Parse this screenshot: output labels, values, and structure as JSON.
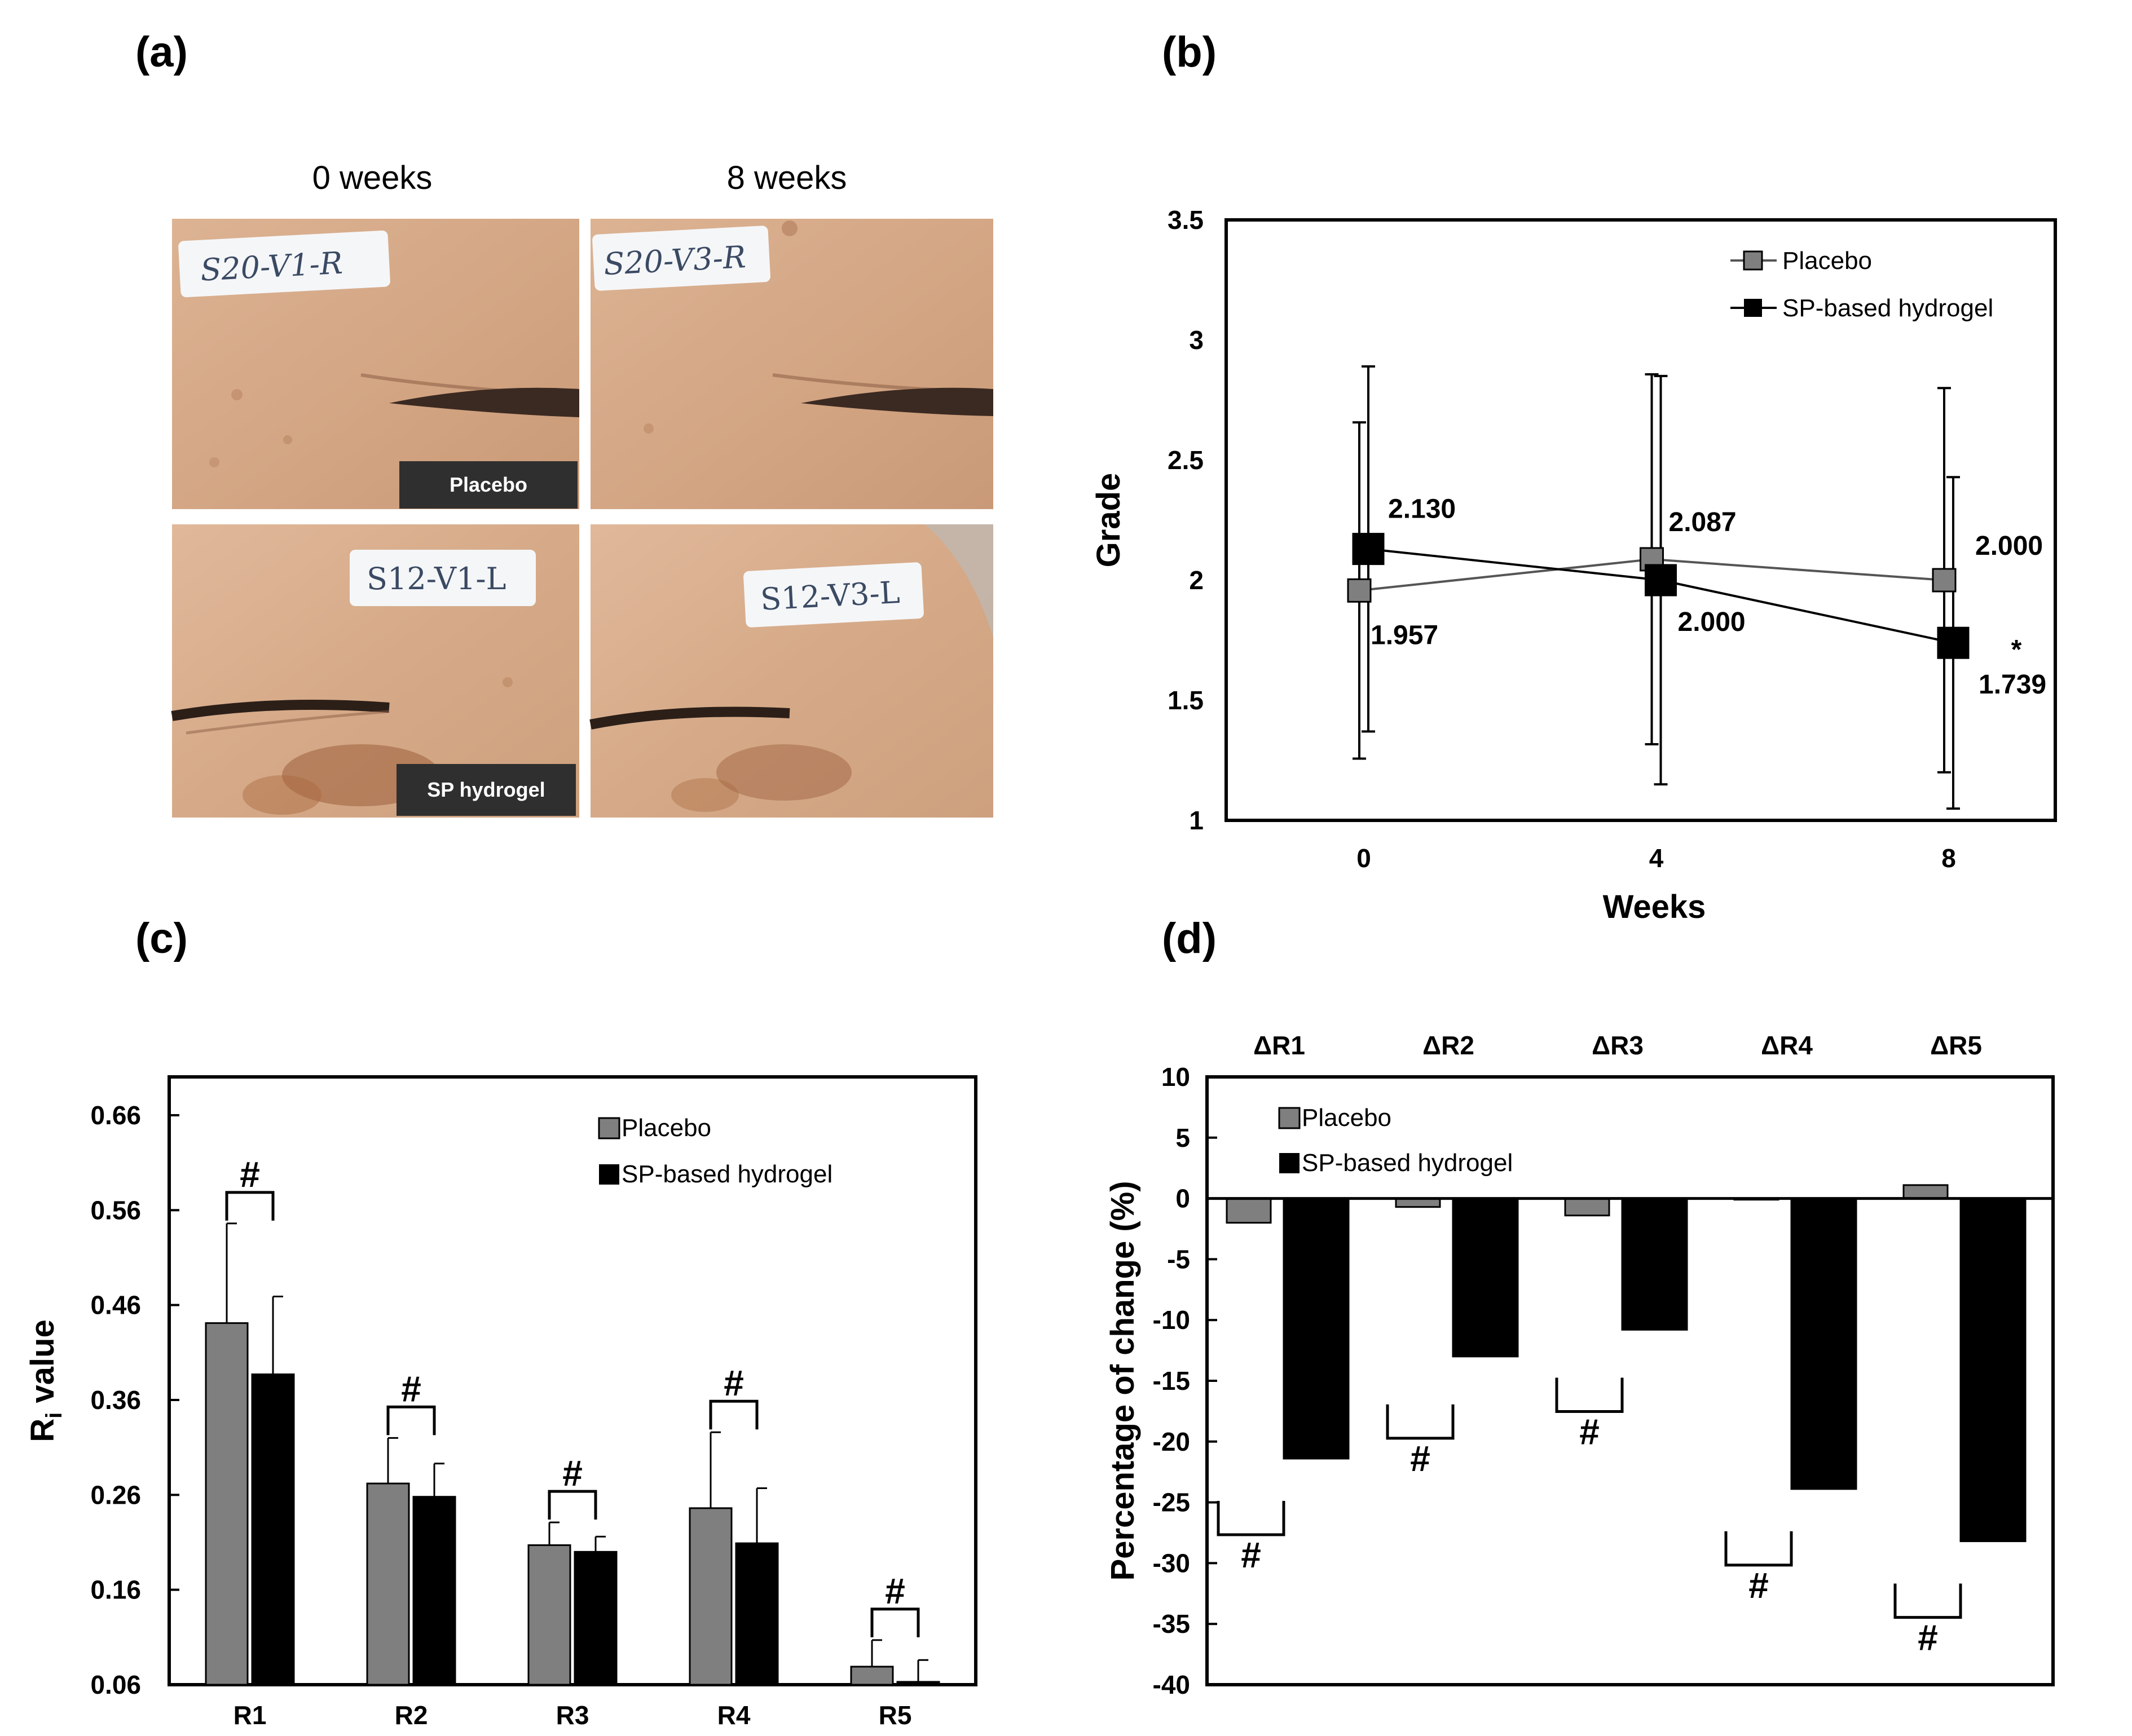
{
  "panels": {
    "a": "(a)",
    "b": "(b)",
    "c": "(c)",
    "d": "(d)"
  },
  "photos": {
    "col_0": "0 weeks",
    "col_8": "8 weeks",
    "tags": [
      "S20-V1-R",
      "S20-V3-R",
      "S12-V1-L",
      "S12-V3-L"
    ],
    "badge_placebo": "Placebo",
    "badge_sp": "SP hydrogel"
  },
  "colors": {
    "placebo": "#7f7f7f",
    "sp": "#000000",
    "skin": "#d8ab88"
  },
  "chart_data": [
    {
      "id": "b",
      "type": "line",
      "xlabel": "Weeks",
      "ylabel": "Grade",
      "x": [
        0,
        4,
        8
      ],
      "x_ticks": [
        "0",
        "4",
        "8"
      ],
      "ylim": [
        1,
        3.5
      ],
      "y_ticks": [
        "1",
        "1.5",
        "2",
        "2.5",
        "3",
        "3.5"
      ],
      "legend": [
        "Placebo",
        "SP-based hydrogel"
      ],
      "series": [
        {
          "name": "Placebo",
          "values": [
            1.957,
            2.087,
            2.0
          ],
          "errors": [
            0.7,
            0.77,
            0.8
          ],
          "labels": [
            "1.957",
            "2.087",
            "2.000"
          ]
        },
        {
          "name": "SP-based hydrogel",
          "values": [
            2.13,
            2.0,
            1.739
          ],
          "errors": [
            0.76,
            0.85,
            0.69
          ],
          "labels": [
            "2.130",
            "2.000",
            "1.739"
          ]
        }
      ],
      "annotations": [
        "*"
      ]
    },
    {
      "id": "c",
      "type": "bar",
      "ylabel": "R",
      "ylabel_sub": "i",
      "ylabel_suffix": " value",
      "categories": [
        "R1",
        "R2",
        "R3",
        "R4",
        "R5"
      ],
      "ylim": [
        0.06,
        0.66
      ],
      "y_ticks": [
        "0.06",
        "0.16",
        "0.26",
        "0.36",
        "0.46",
        "0.56",
        "0.66"
      ],
      "legend": [
        "Placebo",
        "SP-based hydrogel"
      ],
      "series": [
        {
          "name": "Placebo",
          "values": [
            0.441,
            0.272,
            0.207,
            0.246,
            0.079
          ],
          "errors": [
            0.105,
            0.048,
            0.024,
            0.08,
            0.028
          ]
        },
        {
          "name": "SP-based hydrogel",
          "values": [
            0.387,
            0.258,
            0.2,
            0.209,
            0.063
          ],
          "errors": [
            0.082,
            0.035,
            0.016,
            0.058,
            0.023
          ]
        }
      ],
      "significance": [
        "#",
        "#",
        "#",
        "#",
        "#"
      ]
    },
    {
      "id": "d",
      "type": "bar",
      "ylabel": "Percentage of change (%)",
      "categories": [
        "ΔR1",
        "ΔR2",
        "ΔR3",
        "ΔR4",
        "ΔR5"
      ],
      "ylim": [
        -40,
        10
      ],
      "y_ticks": [
        "-40",
        "-35",
        "-30",
        "-25",
        "-20",
        "-15",
        "-10",
        "-5",
        "0",
        "5",
        "10"
      ],
      "legend": [
        "Placebo",
        "SP-based hydrogel"
      ],
      "series": [
        {
          "name": "Placebo",
          "values": [
            -2.0,
            -0.7,
            -1.4,
            -0.1,
            1.1
          ]
        },
        {
          "name": "SP-based hydrogel",
          "values": [
            -21.4,
            -13.0,
            -10.8,
            -23.9,
            -28.2
          ]
        }
      ],
      "significance": [
        "#",
        "#",
        "#",
        "#",
        "#"
      ]
    }
  ]
}
